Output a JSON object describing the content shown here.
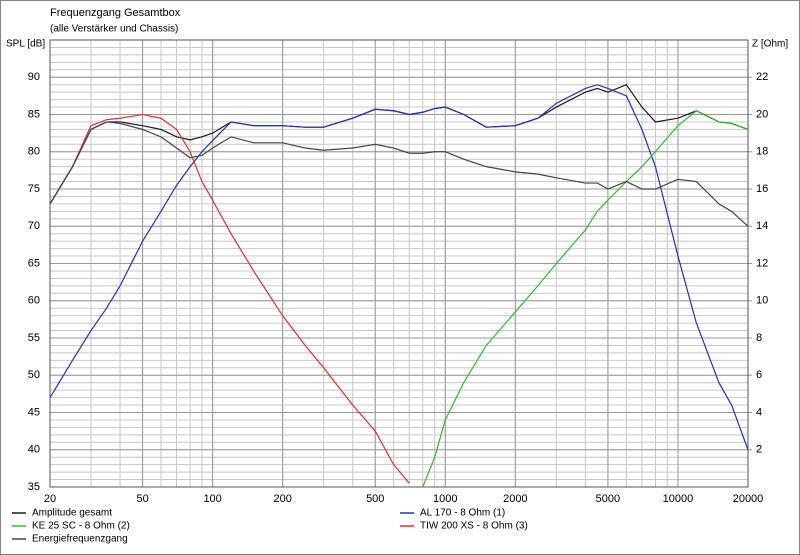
{
  "chart_data": {
    "type": "line",
    "title": "Frequenzgang Gesamtbox",
    "subtitle": "(alle Verstärker und Chassis)",
    "ylabel": "SPL [dB]",
    "y2label": "Z [Ohm]",
    "xscale": "log",
    "grid": true,
    "legend": "bottom",
    "xlim": [
      20,
      20000
    ],
    "xticks": [
      20,
      50,
      100,
      200,
      500,
      1000,
      2000,
      5000,
      10000,
      20000
    ],
    "ylim": [
      35,
      95
    ],
    "yticks": [
      35,
      40,
      45,
      50,
      55,
      60,
      65,
      70,
      75,
      80,
      85,
      90
    ],
    "y2lim": [
      0,
      24
    ],
    "y2ticks": [
      2,
      4,
      6,
      8,
      10,
      12,
      14,
      16,
      18,
      20,
      22
    ],
    "x": [
      20,
      25,
      30,
      35,
      40,
      50,
      60,
      70,
      80,
      90,
      100,
      120,
      150,
      200,
      250,
      300,
      400,
      500,
      600,
      700,
      800,
      900,
      1000,
      1200,
      1500,
      2000,
      2500,
      3000,
      4000,
      4500,
      5000,
      6000,
      7000,
      8000,
      10000,
      12000,
      15000,
      17000,
      20000
    ],
    "series": [
      {
        "name": "Amplitude gesamt",
        "color": "#1a1a1a",
        "values": [
          73,
          78,
          83,
          84,
          84,
          83.5,
          83,
          82,
          81.6,
          82,
          82.5,
          84,
          83.5,
          83.5,
          83.3,
          83.3,
          84.5,
          85.7,
          85.5,
          85,
          85.3,
          85.8,
          86,
          85,
          83.3,
          83.5,
          84.5,
          86,
          88,
          88.5,
          88,
          89,
          86,
          84,
          84.5,
          85.5,
          84,
          83.8,
          83
        ]
      },
      {
        "name": "AL 170 - 8 Ohm (1)",
        "color": "#2233bb",
        "values": [
          47,
          52,
          56,
          59,
          62,
          68,
          72,
          75.5,
          78,
          80,
          81.5,
          84,
          83.5,
          83.5,
          83.3,
          83.3,
          84.5,
          85.7,
          85.5,
          85,
          85.3,
          85.8,
          86,
          85,
          83.3,
          83.5,
          84.5,
          86.5,
          88.5,
          89,
          88.5,
          87.5,
          83,
          78,
          66,
          57,
          49,
          46,
          40
        ]
      },
      {
        "name": "KE 25 SC - 8 Ohm   (2)",
        "color": "#33bb33",
        "values": [
          null,
          null,
          null,
          null,
          null,
          null,
          null,
          null,
          null,
          null,
          null,
          null,
          null,
          null,
          null,
          null,
          null,
          null,
          null,
          null,
          35,
          39,
          44,
          49,
          54,
          58.5,
          62,
          65,
          69.5,
          72,
          73.5,
          76,
          78,
          80,
          83.5,
          85.5,
          84,
          83.8,
          83
        ]
      },
      {
        "name": "TIW 200 XS - 8 Ohm (3)",
        "color": "#dd3333",
        "values": [
          73,
          78,
          83.5,
          84.3,
          84.5,
          85,
          84.5,
          83,
          80,
          76,
          73.5,
          69,
          64,
          58,
          54,
          51,
          46,
          42.5,
          38,
          35.5,
          null,
          null,
          null,
          null,
          null,
          null,
          null,
          null,
          null,
          null,
          null,
          null,
          null,
          null,
          null,
          null,
          null,
          null,
          null
        ]
      },
      {
        "name": "Energiefrequenzgang",
        "color": "#444444",
        "values": [
          73,
          78,
          83,
          84,
          83.8,
          83,
          82,
          80.5,
          79.2,
          79.5,
          80.5,
          82,
          81.2,
          81.2,
          80.5,
          80.2,
          80.5,
          81,
          80.5,
          79.8,
          79.8,
          80,
          80,
          79,
          78,
          77.3,
          77,
          76.5,
          75.8,
          75.8,
          75,
          76,
          75,
          75,
          76.3,
          76,
          73,
          72,
          70
        ]
      }
    ]
  }
}
